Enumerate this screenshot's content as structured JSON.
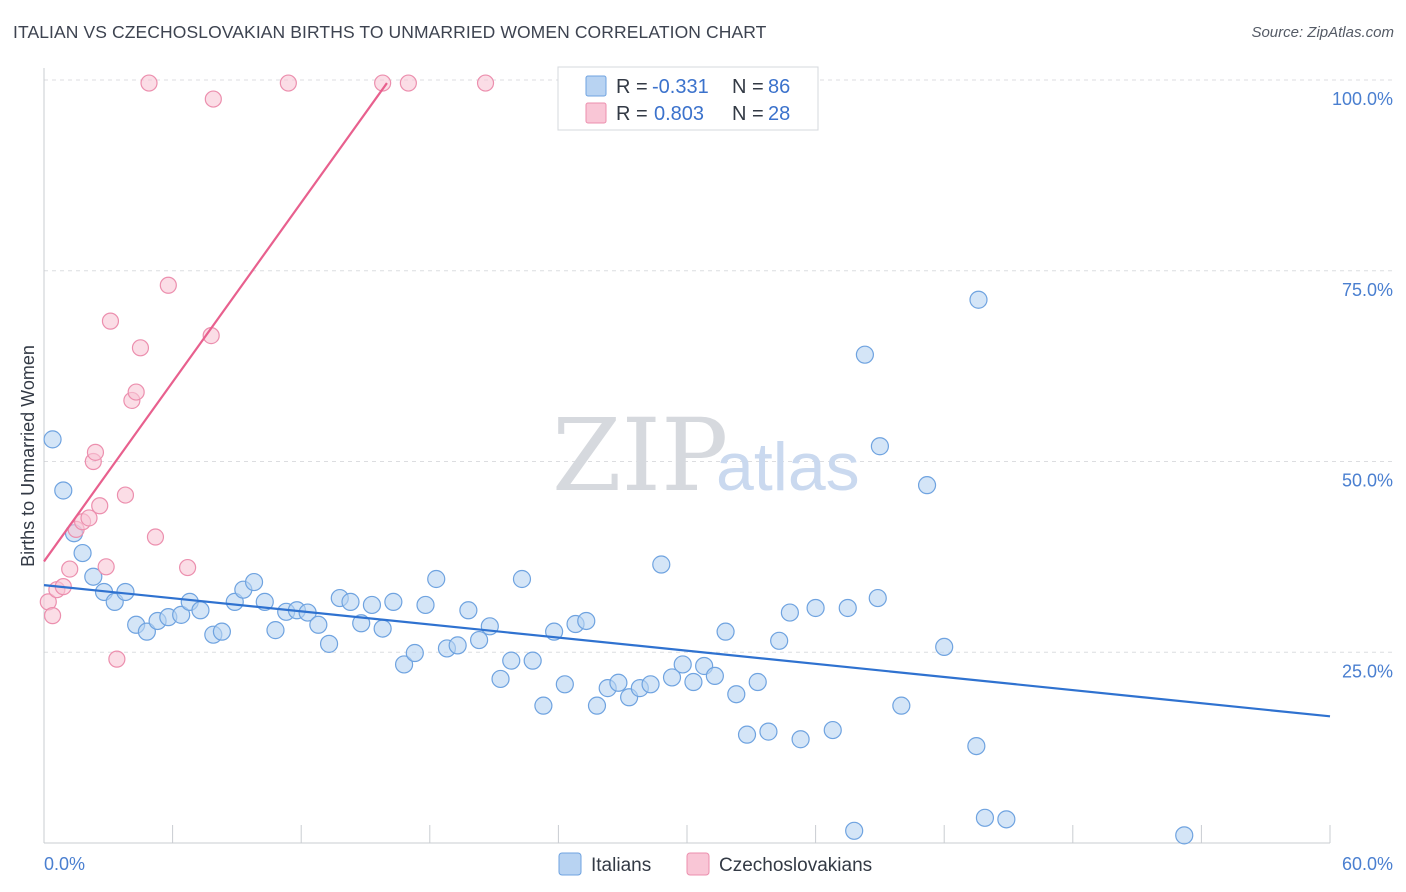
{
  "title": "ITALIAN VS CZECHOSLOVAKIAN BIRTHS TO UNMARRIED WOMEN CORRELATION CHART",
  "source": "Source: ZipAtlas.com",
  "watermark": {
    "zip": "ZIP",
    "atlas": "atlas"
  },
  "colors": {
    "italians_fill": "#b8d3f2",
    "italians_stroke": "#6fa3e0",
    "italians_line": "#2f72d0",
    "czech_fill": "#f9c6d6",
    "czech_stroke": "#ec8fae",
    "czech_line": "#e8608e",
    "grid": "#dcdde0",
    "axis_tick_text": "#4a7fd0"
  },
  "legend": {
    "rows": [
      {
        "r_label": "R =",
        "r_value": "-0.331",
        "n_label": "N =",
        "n_value": "86"
      },
      {
        "r_label": "R =",
        "r_value": "0.803",
        "n_label": "N =",
        "n_value": "28"
      }
    ]
  },
  "bottom_legend": {
    "italians": "Italians",
    "czech": "Czechoslovakians"
  },
  "chart_data": {
    "type": "scatter",
    "title": "ITALIAN VS CZECHOSLOVAKIAN BIRTHS TO UNMARRIED WOMEN CORRELATION CHART",
    "xlabel": "",
    "ylabel": "Births to Unmarried Women",
    "xlim": [
      0,
      60
    ],
    "ylim": [
      0,
      100
    ],
    "x_tick_labels": {
      "left": "0.0%",
      "right": "60.0%"
    },
    "y_ticks": [
      {
        "value": 100,
        "label": "100.0%"
      },
      {
        "value": 75,
        "label": "75.0%"
      },
      {
        "value": 50,
        "label": "50.0%"
      },
      {
        "value": 25,
        "label": "25.0%"
      }
    ],
    "grid": true,
    "series": [
      {
        "name": "Italians",
        "r": -0.331,
        "n": 86,
        "trend": {
          "x": [
            0,
            60
          ],
          "y": [
            33.8,
            16.6
          ]
        },
        "points": [
          [
            0.4,
            52.9
          ],
          [
            0.9,
            46.2
          ],
          [
            1.4,
            40.6
          ],
          [
            1.8,
            38.0
          ],
          [
            2.3,
            34.9
          ],
          [
            2.8,
            32.9
          ],
          [
            3.3,
            31.6
          ],
          [
            3.8,
            32.9
          ],
          [
            4.3,
            28.6
          ],
          [
            4.8,
            27.7
          ],
          [
            5.3,
            29.1
          ],
          [
            5.8,
            29.6
          ],
          [
            6.4,
            29.9
          ],
          [
            6.8,
            31.6
          ],
          [
            7.3,
            30.5
          ],
          [
            7.9,
            27.3
          ],
          [
            8.3,
            27.7
          ],
          [
            8.9,
            31.6
          ],
          [
            9.3,
            33.2
          ],
          [
            9.8,
            34.2
          ],
          [
            10.3,
            31.6
          ],
          [
            10.8,
            27.9
          ],
          [
            11.3,
            30.3
          ],
          [
            11.8,
            30.5
          ],
          [
            12.3,
            30.2
          ],
          [
            12.8,
            28.6
          ],
          [
            13.3,
            26.1
          ],
          [
            13.8,
            32.1
          ],
          [
            14.3,
            31.6
          ],
          [
            14.8,
            28.8
          ],
          [
            15.3,
            31.2
          ],
          [
            15.8,
            28.1
          ],
          [
            16.3,
            31.6
          ],
          [
            16.8,
            23.4
          ],
          [
            17.3,
            24.9
          ],
          [
            17.8,
            31.2
          ],
          [
            18.3,
            34.6
          ],
          [
            18.8,
            25.5
          ],
          [
            19.3,
            25.9
          ],
          [
            19.8,
            30.5
          ],
          [
            20.3,
            26.6
          ],
          [
            20.8,
            28.4
          ],
          [
            21.3,
            21.5
          ],
          [
            21.8,
            23.9
          ],
          [
            22.3,
            34.6
          ],
          [
            22.8,
            23.9
          ],
          [
            23.3,
            18.0
          ],
          [
            23.8,
            27.7
          ],
          [
            24.3,
            20.8
          ],
          [
            24.8,
            28.7
          ],
          [
            25.3,
            29.1
          ],
          [
            25.8,
            18.0
          ],
          [
            26.3,
            20.3
          ],
          [
            26.8,
            21.0
          ],
          [
            27.3,
            19.1
          ],
          [
            27.8,
            20.3
          ],
          [
            28.3,
            20.8
          ],
          [
            28.8,
            36.5
          ],
          [
            29.3,
            21.7
          ],
          [
            29.8,
            23.4
          ],
          [
            30.3,
            21.1
          ],
          [
            30.8,
            23.2
          ],
          [
            31.3,
            21.9
          ],
          [
            31.8,
            27.7
          ],
          [
            32.3,
            19.5
          ],
          [
            32.8,
            14.2
          ],
          [
            33.3,
            21.1
          ],
          [
            33.8,
            14.6
          ],
          [
            34.3,
            26.5
          ],
          [
            34.8,
            30.2
          ],
          [
            35.3,
            13.6
          ],
          [
            36.0,
            30.8
          ],
          [
            36.8,
            14.8
          ],
          [
            37.5,
            30.8
          ],
          [
            37.8,
            1.6
          ],
          [
            38.3,
            64.0
          ],
          [
            38.9,
            32.1
          ],
          [
            39.0,
            52.0
          ],
          [
            40.0,
            18.0
          ],
          [
            41.2,
            46.9
          ],
          [
            42.0,
            25.7
          ],
          [
            43.5,
            12.7
          ],
          [
            43.6,
            71.2
          ],
          [
            43.9,
            3.3
          ],
          [
            44.9,
            3.1
          ],
          [
            53.2,
            1.0
          ]
        ]
      },
      {
        "name": "Czechoslovakians",
        "r": 0.803,
        "n": 28,
        "trend": {
          "x": [
            0,
            16.0
          ],
          "y": [
            36.9,
            99.6
          ]
        },
        "points": [
          [
            0.2,
            31.6
          ],
          [
            0.4,
            29.8
          ],
          [
            0.6,
            33.2
          ],
          [
            0.9,
            33.6
          ],
          [
            1.2,
            35.9
          ],
          [
            1.5,
            41.1
          ],
          [
            1.8,
            42.1
          ],
          [
            2.1,
            42.6
          ],
          [
            2.3,
            50.0
          ],
          [
            2.4,
            51.2
          ],
          [
            2.6,
            44.2
          ],
          [
            2.9,
            36.2
          ],
          [
            3.1,
            68.4
          ],
          [
            3.4,
            24.1
          ],
          [
            3.8,
            45.6
          ],
          [
            4.1,
            58.0
          ],
          [
            4.3,
            59.1
          ],
          [
            4.5,
            64.9
          ],
          [
            4.9,
            99.6
          ],
          [
            5.2,
            40.1
          ],
          [
            5.8,
            73.1
          ],
          [
            6.7,
            36.1
          ],
          [
            7.9,
            97.5
          ],
          [
            7.8,
            66.5
          ],
          [
            11.4,
            99.6
          ],
          [
            15.8,
            99.6
          ],
          [
            17.0,
            99.6
          ],
          [
            20.6,
            99.6
          ]
        ]
      }
    ]
  }
}
